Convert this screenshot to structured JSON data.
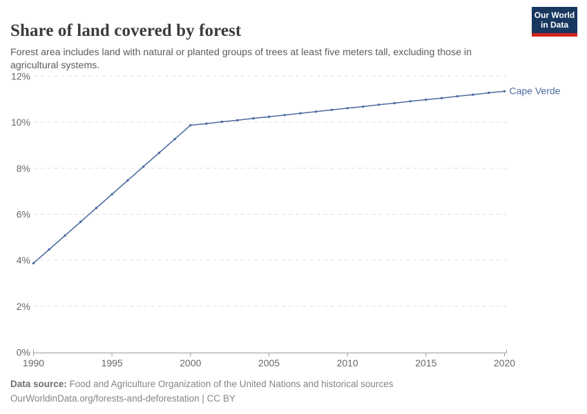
{
  "header": {
    "title": "Share of land covered by forest",
    "subtitle": "Forest area includes land with natural or planted groups of trees at least five meters tall, excluding those in agricultural systems.",
    "logo": {
      "line1": "Our World",
      "line2": "in Data"
    }
  },
  "chart_data": {
    "type": "line",
    "title": "Share of land covered by forest",
    "series": [
      {
        "name": "Cape Verde",
        "x": [
          1990,
          1991,
          1992,
          1993,
          1994,
          1995,
          1996,
          1997,
          1998,
          1999,
          2000,
          2001,
          2002,
          2003,
          2004,
          2005,
          2006,
          2007,
          2008,
          2009,
          2010,
          2011,
          2012,
          2013,
          2014,
          2015,
          2016,
          2017,
          2018,
          2019,
          2020
        ],
        "values": [
          3.87,
          4.47,
          5.07,
          5.67,
          6.27,
          6.87,
          7.47,
          8.07,
          8.67,
          9.27,
          9.87,
          9.94,
          10.02,
          10.09,
          10.17,
          10.24,
          10.31,
          10.39,
          10.46,
          10.54,
          10.61,
          10.68,
          10.76,
          10.83,
          10.91,
          10.98,
          11.05,
          11.13,
          11.2,
          11.28,
          11.35
        ]
      }
    ],
    "unit": "%",
    "xlim": [
      1990,
      2020
    ],
    "ylim": [
      0,
      12
    ],
    "xticks": [
      1990,
      1995,
      2000,
      2005,
      2010,
      2015,
      2020
    ],
    "yticks": [
      0,
      2,
      4,
      6,
      8,
      10,
      12
    ],
    "grid": true,
    "legend_position": "end-of-line-label",
    "colors": {
      "line": "#4c6a9f",
      "entity_label": "#4c6a9f",
      "gridline": "#dcdcdc",
      "axis": "#999999",
      "tick_label": "#666666"
    }
  },
  "footer": {
    "source_label": "Data source:",
    "source_text": "Food and Agriculture Organization of the United Nations and historical sources",
    "link_text": "OurWorldinData.org/forests-and-deforestation | CC BY"
  }
}
